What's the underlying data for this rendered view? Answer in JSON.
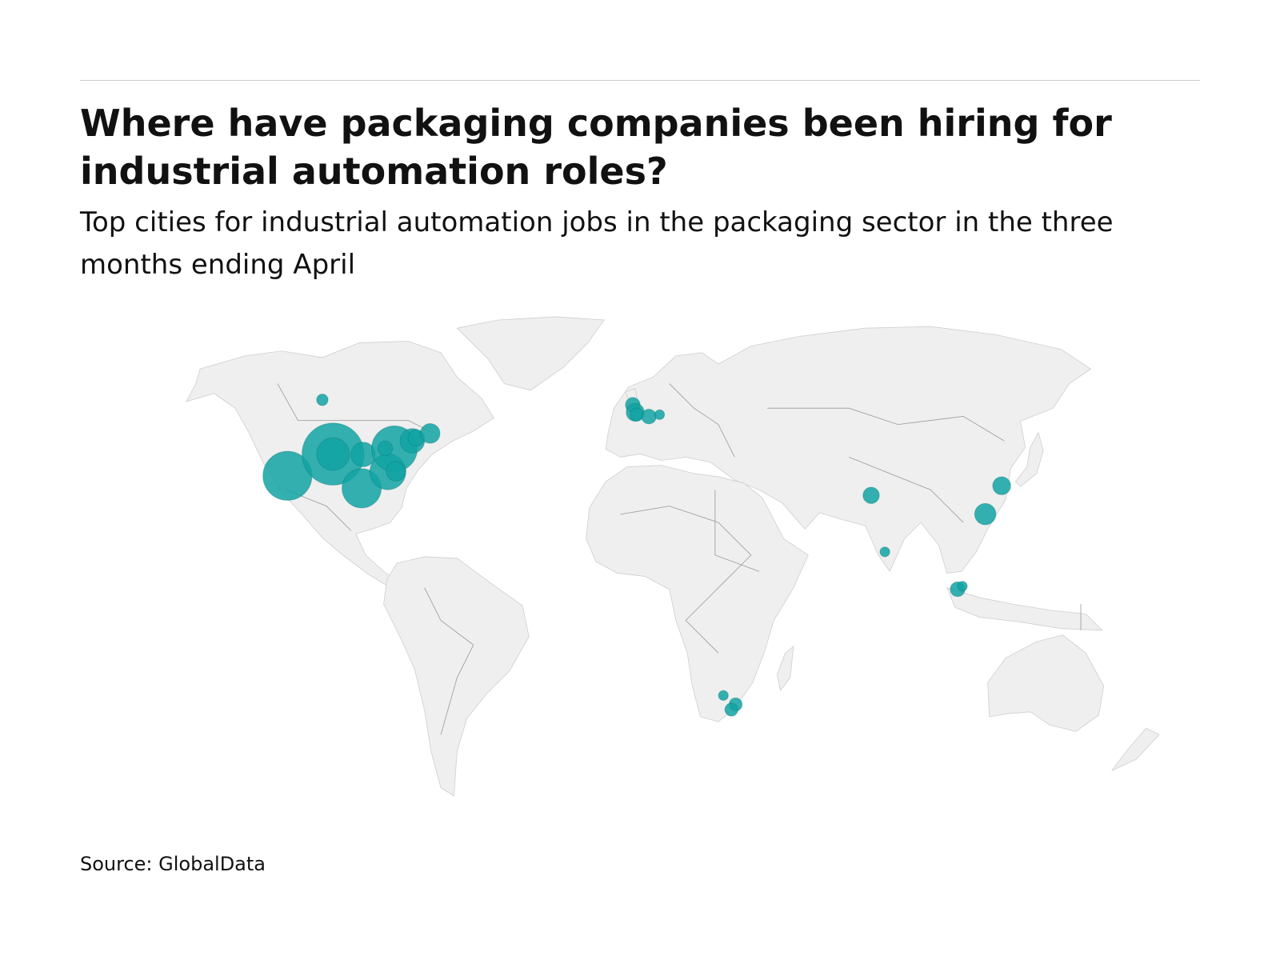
{
  "chart_data": {
    "type": "bubble-map",
    "title": "Where have packaging companies been hiring for industrial automation roles?",
    "subtitle": "Top cities for industrial automation jobs in the packaging sector in the three months ending April",
    "source": "Source: GlobalData",
    "color": "#12a3a3",
    "points": [
      {
        "lon": -104.7,
        "lat": 54.0,
        "value": 49
      },
      {
        "lon": -116.4,
        "lat": 36.4,
        "value": 900
      },
      {
        "lon": -101.1,
        "lat": 42.0,
        "value": 1444
      },
      {
        "lon": -101.1,
        "lat": 42.0,
        "value": 400
      },
      {
        "lon": -91.5,
        "lat": 33.0,
        "value": 576
      },
      {
        "lon": -91.0,
        "lat": 41.9,
        "value": 225
      },
      {
        "lon": -82.7,
        "lat": 37.5,
        "value": 484
      },
      {
        "lon": -80.5,
        "lat": 43.3,
        "value": 784
      },
      {
        "lon": -80.0,
        "lat": 37.6,
        "value": 144
      },
      {
        "lon": -83.6,
        "lat": 43.4,
        "value": 81
      },
      {
        "lon": -74.5,
        "lat": 45.2,
        "value": 225
      },
      {
        "lon": -73.2,
        "lat": 45.9,
        "value": 100
      },
      {
        "lon": -68.5,
        "lat": 46.9,
        "value": 144
      },
      {
        "lon": -0.5,
        "lat": 53.0,
        "value": 81
      },
      {
        "lon": 0.3,
        "lat": 51.5,
        "value": 121
      },
      {
        "lon": 0.8,
        "lat": 51.0,
        "value": 64
      },
      {
        "lon": 4.9,
        "lat": 50.6,
        "value": 81
      },
      {
        "lon": 8.5,
        "lat": 51.0,
        "value": 36
      },
      {
        "lon": 79.5,
        "lat": 31.0,
        "value": 100
      },
      {
        "lon": 84.1,
        "lat": 13.7,
        "value": 36
      },
      {
        "lon": 117.8,
        "lat": 25.5,
        "value": 169
      },
      {
        "lon": 123.3,
        "lat": 33.7,
        "value": 121
      },
      {
        "lon": 108.5,
        "lat": 1.4,
        "value": 81
      },
      {
        "lon": 110.1,
        "lat": 2.4,
        "value": 36
      },
      {
        "lon": 29.9,
        "lat": -32.1,
        "value": 36
      },
      {
        "lon": 34.0,
        "lat": -34.6,
        "value": 64
      },
      {
        "lon": 32.6,
        "lat": -36.0,
        "value": 64
      }
    ]
  }
}
